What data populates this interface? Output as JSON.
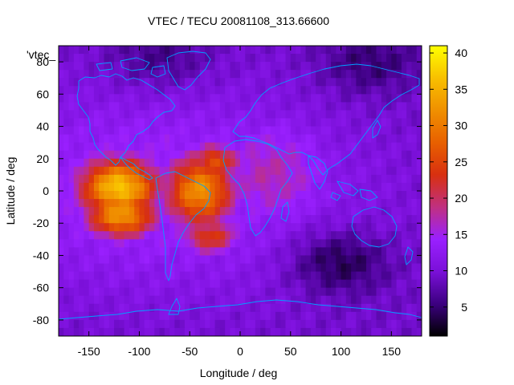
{
  "chart_data": {
    "type": "heatmap",
    "title": "VTEC / TECU 20081108_313.66600",
    "xlabel": "Longitude / deg",
    "ylabel": "Latitude / deg",
    "legend_label": "'vtec_",
    "xlim": [
      -180,
      180
    ],
    "ylim": [
      -90,
      90
    ],
    "xticks": [
      -150,
      -100,
      -50,
      0,
      50,
      100,
      150
    ],
    "yticks": [
      -80,
      -60,
      -40,
      -20,
      0,
      20,
      40,
      60,
      80
    ],
    "colorbar": {
      "min": 1,
      "max": 41,
      "ticks": [
        5,
        10,
        15,
        20,
        25,
        30,
        35,
        40
      ],
      "palette": [
        "#000000",
        "#3c0080",
        "#7a10d8",
        "#9a20ff",
        "#c03080",
        "#d83010",
        "#e86000",
        "#f09000",
        "#f8c000",
        "#ffff00"
      ]
    },
    "features": [
      {
        "name": "main_crest_west",
        "lon": -120,
        "lat": 2,
        "value": 37,
        "sigma_lon": 28,
        "sigma_lat": 13
      },
      {
        "name": "main_crest_west_south",
        "lon": -118,
        "lat": -15,
        "value": 33,
        "sigma_lon": 25,
        "sigma_lat": 10
      },
      {
        "name": "main_crest_east",
        "lon": -40,
        "lat": 0,
        "value": 32,
        "sigma_lon": 25,
        "sigma_lat": 16
      },
      {
        "name": "north_bulge",
        "lon": -25,
        "lat": 18,
        "value": 26,
        "sigma_lon": 18,
        "sigma_lat": 8
      },
      {
        "name": "south_atlantic",
        "lon": -30,
        "lat": -28,
        "value": 24,
        "sigma_lon": 20,
        "sigma_lat": 8
      },
      {
        "name": "tail_eastward",
        "lon": 30,
        "lat": 10,
        "value": 17,
        "sigma_lon": 45,
        "sigma_lat": 25
      },
      {
        "name": "background_band",
        "lon": -80,
        "lat": 0,
        "value": 15,
        "sigma_lon": 140,
        "sigma_lat": 45
      }
    ],
    "background_value": 9,
    "low_regions": [
      {
        "name": "indian_ocean_south",
        "lon": 100,
        "lat": -45,
        "value": 4
      },
      {
        "name": "arctic_asia",
        "lon": 130,
        "lat": 80,
        "value": 5
      },
      {
        "name": "arctic_west",
        "lon": -80,
        "lat": 85,
        "value": 6
      }
    ],
    "continents_overlay": true,
    "continent_color": "#00a0ff"
  }
}
